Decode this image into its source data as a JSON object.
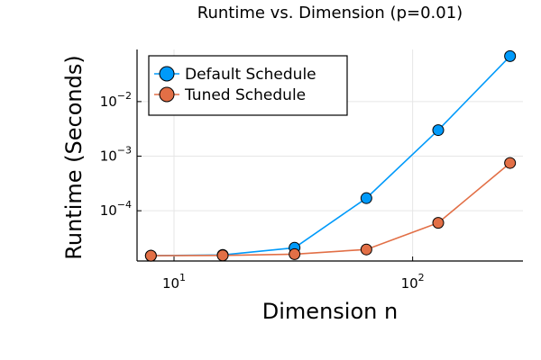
{
  "chart_data": {
    "type": "line",
    "title": "Runtime vs. Dimension (p=0.01)",
    "xlabel": "Dimension n",
    "ylabel": "Runtime (Seconds)",
    "xscale": "log",
    "yscale": "log",
    "xlim": [
      7,
      290
    ],
    "ylim": [
      1.2e-05,
      0.09
    ],
    "grid": true,
    "legend_position": "top-left",
    "x_ticks": [
      {
        "value": 10,
        "base": "10",
        "exp": "1"
      },
      {
        "value": 100,
        "base": "10",
        "exp": "2"
      }
    ],
    "y_ticks": [
      {
        "value": 0.0001,
        "base": "10",
        "exp": "−4"
      },
      {
        "value": 0.001,
        "base": "10",
        "exp": "−3"
      },
      {
        "value": 0.01,
        "base": "10",
        "exp": "−2"
      }
    ],
    "x": [
      8,
      16,
      32,
      64,
      128,
      256
    ],
    "series": [
      {
        "name": "Default Schedule",
        "color": "#009AFA",
        "values": [
          1.5e-05,
          1.55e-05,
          2.1e-05,
          0.00017,
          0.003,
          0.068
        ]
      },
      {
        "name": "Tuned Schedule",
        "color": "#E26F46",
        "values": [
          1.5e-05,
          1.52e-05,
          1.6e-05,
          1.95e-05,
          6e-05,
          0.00075
        ]
      }
    ]
  }
}
